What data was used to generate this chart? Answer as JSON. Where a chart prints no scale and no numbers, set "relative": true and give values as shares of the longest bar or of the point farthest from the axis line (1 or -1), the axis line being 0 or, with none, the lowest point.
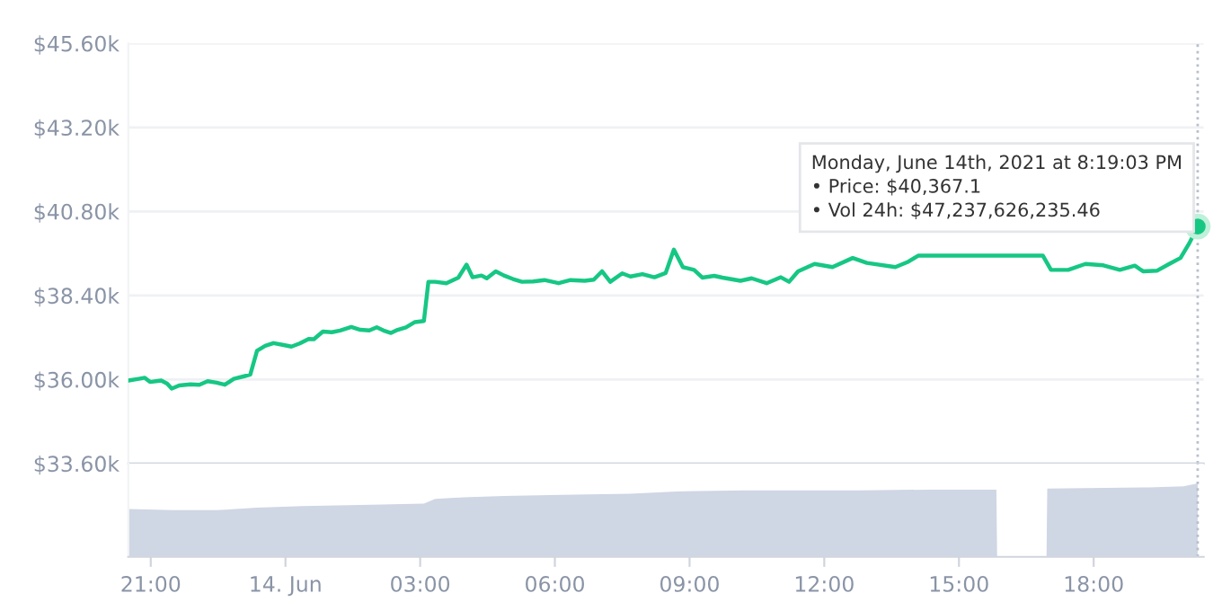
{
  "chart_data": [
    {
      "type": "line",
      "xlim": [
        "2021-06-13T20:30",
        "2021-06-14T20:27"
      ],
      "ylim": [
        33600,
        45600
      ],
      "yticks": [
        {
          "value": 33600,
          "label": "$33.60k"
        },
        {
          "value": 36000,
          "label": "$36.00k"
        },
        {
          "value": 38400,
          "label": "$38.40k"
        },
        {
          "value": 40800,
          "label": "$40.80k"
        },
        {
          "value": 43200,
          "label": "$43.20k"
        },
        {
          "value": 45600,
          "label": "$45.60k"
        }
      ],
      "grid": "y",
      "tick_labels": "y",
      "series": [
        {
          "color": "#16c784",
          "x": [
            "2021-06-13T20:30",
            "2021-06-13T20:44",
            "2021-06-13T20:52",
            "2021-06-13T20:59",
            "2021-06-13T21:07",
            "2021-06-13T21:14",
            "2021-06-13T21:22",
            "2021-06-13T21:28",
            "2021-06-13T21:38",
            "2021-06-13T21:53",
            "2021-06-13T22:05",
            "2021-06-13T22:16",
            "2021-06-13T22:28",
            "2021-06-13T22:39",
            "2021-06-13T22:51",
            "2021-06-13T23:06",
            "2021-06-13T23:13",
            "2021-06-13T23:22",
            "2021-06-13T23:33",
            "2021-06-13T23:44",
            "2021-06-13T23:56",
            "2021-06-14T00:08",
            "2021-06-14T00:19",
            "2021-06-14T00:31",
            "2021-06-14T00:38",
            "2021-06-14T00:50",
            "2021-06-14T01:02",
            "2021-06-14T01:13",
            "2021-06-14T01:28",
            "2021-06-14T01:40",
            "2021-06-14T01:52",
            "2021-06-14T02:02",
            "2021-06-14T02:11",
            "2021-06-14T02:21",
            "2021-06-14T02:30",
            "2021-06-14T02:41",
            "2021-06-14T02:53",
            "2021-06-14T03:05",
            "2021-06-14T03:11",
            "2021-06-14T03:20",
            "2021-06-14T03:35",
            "2021-06-14T03:51",
            "2021-06-14T04:02",
            "2021-06-14T04:10",
            "2021-06-14T04:22",
            "2021-06-14T04:29",
            "2021-06-14T04:41",
            "2021-06-14T04:52",
            "2021-06-14T05:04",
            "2021-06-14T05:16",
            "2021-06-14T05:31",
            "2021-06-14T05:46",
            "2021-06-14T06:05",
            "2021-06-14T06:21",
            "2021-06-14T06:40",
            "2021-06-14T06:52",
            "2021-06-14T07:03",
            "2021-06-14T07:14",
            "2021-06-14T07:30",
            "2021-06-14T07:41",
            "2021-06-14T07:57",
            "2021-06-14T08:13",
            "2021-06-14T08:28",
            "2021-06-14T08:39",
            "2021-06-14T08:51",
            "2021-06-14T09:06",
            "2021-06-14T09:17",
            "2021-06-14T09:33",
            "2021-06-14T09:44",
            "2021-06-14T10:08",
            "2021-06-14T10:23",
            "2021-06-14T10:43",
            "2021-06-14T11:02",
            "2021-06-14T11:13",
            "2021-06-14T11:25",
            "2021-06-14T11:47",
            "2021-06-14T12:11",
            "2021-06-14T12:38",
            "2021-06-14T12:57",
            "2021-06-14T13:35",
            "2021-06-14T13:51",
            "2021-06-14T14:06",
            "2021-06-14T14:52",
            "2021-06-14T15:54",
            "2021-06-14T16:52",
            "2021-06-14T17:03",
            "2021-06-14T17:26",
            "2021-06-14T17:49",
            "2021-06-14T18:13",
            "2021-06-14T18:35",
            "2021-06-14T18:55",
            "2021-06-14T19:06",
            "2021-06-14T19:25",
            "2021-06-14T19:41",
            "2021-06-14T19:56",
            "2021-06-14T20:08",
            "2021-06-14T20:19"
          ],
          "values": [
            35970,
            36020,
            36050,
            35930,
            35950,
            35970,
            35880,
            35740,
            35830,
            35860,
            35850,
            35950,
            35910,
            35850,
            36020,
            36100,
            36140,
            36820,
            36960,
            37040,
            36990,
            36940,
            37030,
            37160,
            37150,
            37370,
            37350,
            37400,
            37500,
            37420,
            37400,
            37490,
            37400,
            37330,
            37420,
            37490,
            37640,
            37670,
            38790,
            38790,
            38750,
            38910,
            39280,
            38920,
            38970,
            38890,
            39090,
            38970,
            38870,
            38790,
            38800,
            38840,
            38750,
            38840,
            38820,
            38850,
            39090,
            38790,
            39030,
            38940,
            39010,
            38920,
            39040,
            39710,
            39210,
            39130,
            38910,
            38960,
            38910,
            38820,
            38890,
            38750,
            38920,
            38790,
            39090,
            39300,
            39210,
            39470,
            39330,
            39210,
            39350,
            39540,
            39540,
            39540,
            39540,
            39130,
            39130,
            39300,
            39260,
            39130,
            39250,
            39090,
            39110,
            39300,
            39470,
            39900,
            40370
          ]
        },
        {
          "type": "scatter",
          "color": "#16c784",
          "marker": "circle",
          "x": [
            "2021-06-14T20:19"
          ],
          "values": [
            40370
          ]
        }
      ],
      "ref_lines": [
        {
          "axis": "x",
          "value": "2021-06-14T20:19",
          "color": "#b8c0cc",
          "line_style": "dotted"
        }
      ],
      "annotations": [
        "Monday, June 14th, 2021 at 8:19:03 PM\n• Price: $40,367.1\n• Vol 24h: $47,237,626,235.46"
      ]
    },
    {
      "type": "area",
      "relative": true,
      "xlim": [
        "2021-06-13T20:30",
        "2021-06-14T20:27"
      ],
      "xticks": [
        {
          "value": "2021-06-13T21:00",
          "label": "21:00"
        },
        {
          "value": "2021-06-14",
          "label": "14. Jun"
        },
        {
          "value": "2021-06-14T03:00",
          "label": "03:00"
        },
        {
          "value": "2021-06-14T06:00",
          "label": "06:00"
        },
        {
          "value": "2021-06-14T09:00",
          "label": "09:00"
        },
        {
          "value": "2021-06-14T12:00",
          "label": "12:00"
        },
        {
          "value": "2021-06-14T15:00",
          "label": "15:00"
        },
        {
          "value": "2021-06-14T18:00",
          "label": "18:00"
        }
      ],
      "tick_labels": "x",
      "series": [
        {
          "color": "#cfd6e4",
          "x": [
            "2021-06-13T20:30",
            "2021-06-13T21:30",
            "2021-06-13T22:28",
            "2021-06-13T23:22",
            "2021-06-14T00:23",
            "2021-06-14T01:40",
            "2021-06-14T03:05",
            "2021-06-14T03:20",
            "2021-06-14T03:58",
            "2021-06-14T04:52",
            "2021-06-14T06:09",
            "2021-06-14T07:41",
            "2021-06-14T08:43",
            "2021-06-14T10:16",
            "2021-06-14T12:49",
            "2021-06-14T14:22",
            "2021-06-14T15:50",
            "2021-06-14T15:51",
            "2021-06-14T16:57",
            "2021-06-14T16:58",
            "2021-06-14T19:14",
            "2021-06-14T20:00",
            "2021-06-14T20:19"
          ],
          "values": [
            0.65,
            0.635,
            0.635,
            0.67,
            0.69,
            0.705,
            0.725,
            0.79,
            0.81,
            0.83,
            0.845,
            0.86,
            0.89,
            0.905,
            0.905,
            0.915,
            0.915,
            0,
            0,
            0.93,
            0.945,
            0.96,
            1
          ]
        }
      ],
      "ref_lines": [
        {
          "axis": "x",
          "value": "2021-06-14T20:19",
          "color": "#b8c0cc",
          "line_style": "dotted"
        }
      ]
    }
  ]
}
